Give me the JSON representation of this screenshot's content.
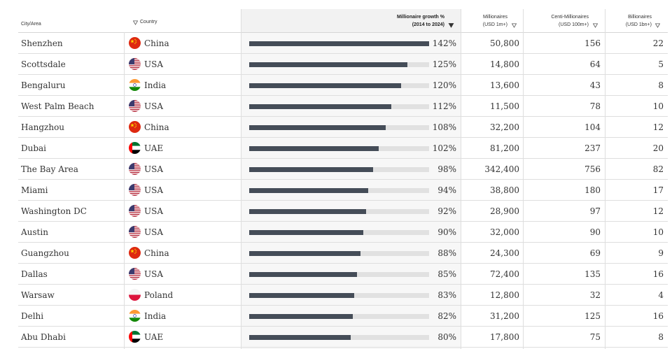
{
  "header": {
    "city": "City/Area",
    "country": "Country",
    "growth_line1": "Millionaire growth %",
    "growth_line2": "(2014 to 2024)",
    "millionaires_line1": "Millionaires",
    "millionaires_line2": "(USD 1m+)",
    "centi_line1": "Centi-Millionaires",
    "centi_line2": "(USD 100m+)",
    "billionaires_line1": "Billionaires",
    "billionaires_line2": "(USD 1bn+)"
  },
  "colors": {
    "bar": "#454d58",
    "track": "#e1e1e1",
    "header_shade": "#f2f2f2"
  },
  "growth_max": 142,
  "rows": [
    {
      "city": "Shenzhen",
      "country": "China",
      "flag": "china-flag-icon",
      "growth": 142,
      "growth_label": "142%",
      "millionaires": "50,800",
      "centi": "156",
      "billionaires": "22"
    },
    {
      "city": "Scottsdale",
      "country": "USA",
      "flag": "usa-flag-icon",
      "growth": 125,
      "growth_label": "125%",
      "millionaires": "14,800",
      "centi": "64",
      "billionaires": "5"
    },
    {
      "city": "Bengaluru",
      "country": "India",
      "flag": "india-flag-icon",
      "growth": 120,
      "growth_label": "120%",
      "millionaires": "13,600",
      "centi": "43",
      "billionaires": "8"
    },
    {
      "city": "West Palm Beach",
      "country": "USA",
      "flag": "usa-flag-icon",
      "growth": 112,
      "growth_label": "112%",
      "millionaires": "11,500",
      "centi": "78",
      "billionaires": "10"
    },
    {
      "city": "Hangzhou",
      "country": "China",
      "flag": "china-flag-icon",
      "growth": 108,
      "growth_label": "108%",
      "millionaires": "32,200",
      "centi": "104",
      "billionaires": "12"
    },
    {
      "city": "Dubai",
      "country": "UAE",
      "flag": "uae-flag-icon",
      "growth": 102,
      "growth_label": "102%",
      "millionaires": "81,200",
      "centi": "237",
      "billionaires": "20"
    },
    {
      "city": "The Bay Area",
      "country": "USA",
      "flag": "usa-flag-icon",
      "growth": 98,
      "growth_label": "98%",
      "millionaires": "342,400",
      "centi": "756",
      "billionaires": "82"
    },
    {
      "city": "Miami",
      "country": "USA",
      "flag": "usa-flag-icon",
      "growth": 94,
      "growth_label": "94%",
      "millionaires": "38,800",
      "centi": "180",
      "billionaires": "17"
    },
    {
      "city": "Washington DC",
      "country": "USA",
      "flag": "usa-flag-icon",
      "growth": 92,
      "growth_label": "92%",
      "millionaires": "28,900",
      "centi": "97",
      "billionaires": "12"
    },
    {
      "city": "Austin",
      "country": "USA",
      "flag": "usa-flag-icon",
      "growth": 90,
      "growth_label": "90%",
      "millionaires": "32,000",
      "centi": "90",
      "billionaires": "10"
    },
    {
      "city": "Guangzhou",
      "country": "China",
      "flag": "china-flag-icon",
      "growth": 88,
      "growth_label": "88%",
      "millionaires": "24,300",
      "centi": "69",
      "billionaires": "9"
    },
    {
      "city": "Dallas",
      "country": "USA",
      "flag": "usa-flag-icon",
      "growth": 85,
      "growth_label": "85%",
      "millionaires": "72,400",
      "centi": "135",
      "billionaires": "16"
    },
    {
      "city": "Warsaw",
      "country": "Poland",
      "flag": "poland-flag-icon",
      "growth": 83,
      "growth_label": "83%",
      "millionaires": "12,800",
      "centi": "32",
      "billionaires": "4"
    },
    {
      "city": "Delhi",
      "country": "India",
      "flag": "india-flag-icon",
      "growth": 82,
      "growth_label": "82%",
      "millionaires": "31,200",
      "centi": "125",
      "billionaires": "16"
    },
    {
      "city": "Abu Dhabi",
      "country": "UAE",
      "flag": "uae-flag-icon",
      "growth": 80,
      "growth_label": "80%",
      "millionaires": "17,800",
      "centi": "75",
      "billionaires": "8"
    }
  ]
}
